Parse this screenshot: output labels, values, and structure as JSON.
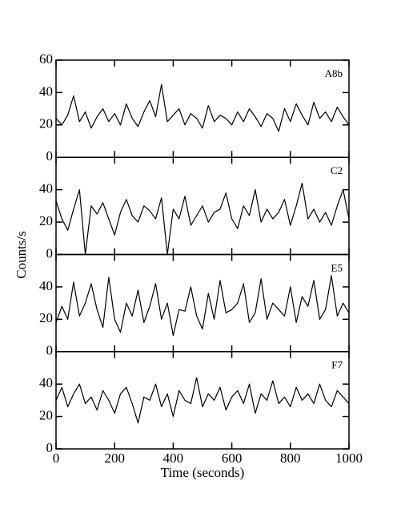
{
  "ylabel": "Counts/s",
  "chart_data": [
    {
      "type": "line",
      "annotation": "A8b",
      "ylim": [
        0,
        60
      ],
      "yticks": [
        0,
        20,
        40,
        60
      ],
      "color": "#000000",
      "values": [
        24,
        20,
        26,
        38,
        22,
        28,
        18,
        25,
        30,
        22,
        27,
        20,
        33,
        24,
        19,
        28,
        35,
        25,
        45,
        22,
        26,
        30,
        20,
        27,
        24,
        18,
        32,
        22,
        26,
        24,
        20,
        28,
        22,
        30,
        25,
        19,
        27,
        24,
        16,
        30,
        22,
        33,
        26,
        20,
        34,
        24,
        28,
        22,
        31,
        25,
        20
      ]
    },
    {
      "type": "line",
      "annotation": "C2",
      "ylim": [
        0,
        60
      ],
      "yticks": [
        0,
        20,
        40
      ],
      "color": "#000000",
      "values": [
        33,
        22,
        15,
        28,
        40,
        0,
        30,
        25,
        32,
        22,
        12,
        26,
        34,
        24,
        20,
        30,
        27,
        22,
        35,
        0,
        28,
        22,
        36,
        18,
        24,
        30,
        20,
        26,
        28,
        38,
        22,
        16,
        30,
        24,
        40,
        20,
        28,
        22,
        26,
        34,
        18,
        30,
        44,
        22,
        28,
        20,
        26,
        18,
        30,
        40,
        22
      ]
    },
    {
      "type": "line",
      "annotation": "E5",
      "ylim": [
        0,
        60
      ],
      "yticks": [
        0,
        20,
        40
      ],
      "color": "#000000",
      "values": [
        18,
        28,
        20,
        43,
        22,
        30,
        42,
        26,
        15,
        46,
        20,
        12,
        30,
        22,
        38,
        18,
        28,
        42,
        20,
        30,
        10,
        26,
        25,
        40,
        22,
        14,
        36,
        20,
        44,
        24,
        26,
        30,
        42,
        18,
        24,
        45,
        20,
        30,
        26,
        22,
        40,
        18,
        34,
        28,
        44,
        20,
        26,
        47,
        22,
        30,
        24
      ]
    },
    {
      "type": "line",
      "annotation": "F7",
      "ylim": [
        0,
        60
      ],
      "yticks": [
        0,
        20,
        40
      ],
      "color": "#000000",
      "xlabel": "Time  (seconds)",
      "xlim": [
        0,
        1000
      ],
      "xticks": [
        0,
        200,
        400,
        600,
        800,
        1000
      ],
      "x": [
        0,
        20,
        40,
        60,
        80,
        100,
        120,
        140,
        160,
        180,
        200,
        220,
        240,
        260,
        280,
        300,
        320,
        340,
        360,
        380,
        400,
        420,
        440,
        460,
        480,
        500,
        520,
        540,
        560,
        580,
        600,
        620,
        640,
        660,
        680,
        700,
        720,
        740,
        760,
        780,
        800,
        820,
        840,
        860,
        880,
        900,
        920,
        940,
        960,
        980,
        1000
      ],
      "values": [
        30,
        38,
        26,
        34,
        40,
        28,
        32,
        24,
        36,
        30,
        22,
        34,
        38,
        28,
        16,
        32,
        30,
        40,
        26,
        34,
        20,
        36,
        30,
        28,
        44,
        26,
        34,
        30,
        38,
        24,
        32,
        36,
        28,
        40,
        22,
        34,
        30,
        42,
        28,
        32,
        26,
        38,
        30,
        34,
        28,
        40,
        30,
        26,
        36,
        32,
        28
      ]
    }
  ]
}
